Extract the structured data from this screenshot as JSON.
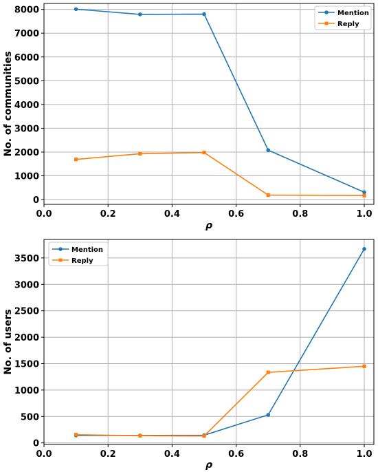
{
  "colors": {
    "mention": "#1f77b4",
    "reply": "#ff7f0e",
    "grid": "#b0b0b0"
  },
  "chart_data": [
    {
      "type": "line",
      "xlabel": "ρ",
      "ylabel": "No. of communities",
      "xlim": [
        0.0,
        1.03
      ],
      "ylim": [
        -200,
        8250
      ],
      "xticks": [
        0.0,
        0.2,
        0.4,
        0.6,
        0.8,
        1.0
      ],
      "xtick_labels": [
        "0.0",
        "0.2",
        "0.4",
        "0.6",
        "0.8",
        "1.0"
      ],
      "yticks": [
        0,
        1000,
        2000,
        3000,
        4000,
        5000,
        6000,
        7000,
        8000
      ],
      "ytick_labels": [
        "0",
        "1000",
        "2000",
        "3000",
        "4000",
        "5000",
        "6000",
        "7000",
        "8000"
      ],
      "grid": true,
      "legend_position": "top-right",
      "x": [
        0.1,
        0.3,
        0.5,
        0.7,
        1.0
      ],
      "series": [
        {
          "name": "Mention",
          "marker": "circle",
          "color": "#1f77b4",
          "values": [
            8010,
            7790,
            7800,
            2080,
            310
          ]
        },
        {
          "name": "Reply",
          "marker": "square",
          "color": "#ff7f0e",
          "values": [
            1690,
            1930,
            1980,
            190,
            170
          ]
        }
      ]
    },
    {
      "type": "line",
      "xlabel": "ρ",
      "ylabel": "No. of users",
      "xlim": [
        0.0,
        1.03
      ],
      "ylim": [
        -30,
        3850
      ],
      "xticks": [
        0.0,
        0.2,
        0.4,
        0.6,
        0.8,
        1.0
      ],
      "xtick_labels": [
        "0.0",
        "0.2",
        "0.4",
        "0.6",
        "0.8",
        "1.0"
      ],
      "yticks": [
        0,
        500,
        1000,
        1500,
        2000,
        2500,
        3000,
        3500
      ],
      "ytick_labels": [
        "0",
        "500",
        "1000",
        "1500",
        "2000",
        "2500",
        "3000",
        "3500"
      ],
      "grid": true,
      "legend_position": "top-left",
      "x": [
        0.1,
        0.3,
        0.5,
        0.7,
        1.0
      ],
      "series": [
        {
          "name": "Mention",
          "marker": "circle",
          "color": "#1f77b4",
          "values": [
            140,
            140,
            145,
            530,
            3670
          ]
        },
        {
          "name": "Reply",
          "marker": "square",
          "color": "#ff7f0e",
          "values": [
            155,
            135,
            130,
            1335,
            1450
          ]
        }
      ]
    }
  ]
}
